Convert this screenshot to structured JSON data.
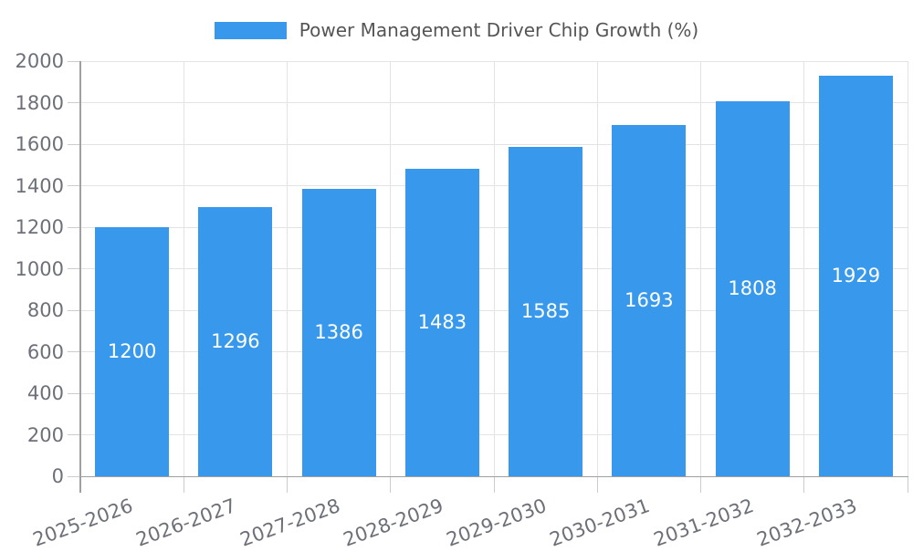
{
  "chart_data": {
    "type": "bar",
    "title": "Power Management Driver Chip Growth (%)",
    "legend": {
      "position": "top-center",
      "label": "Power Management Driver Chip Growth (%)"
    },
    "categories": [
      "2025-2026",
      "2026-2027",
      "2027-2028",
      "2028-2029",
      "2029-2030",
      "2030-2031",
      "2031-2032",
      "2032-2033"
    ],
    "values": [
      1200,
      1296,
      1386,
      1483,
      1585,
      1693,
      1808,
      1929
    ],
    "bar_labels": [
      "1200",
      "1296",
      "1386",
      "1483",
      "1585",
      "1693",
      "1808",
      "1929"
    ],
    "xlabel": "",
    "ylabel": "",
    "ylim": [
      0,
      2000
    ],
    "ytick_step": 200,
    "ytick_labels": [
      "0",
      "200",
      "400",
      "600",
      "800",
      "1000",
      "1200",
      "1400",
      "1600",
      "1800",
      "2000"
    ],
    "grid": "horizontal and vertical gridlines on, light gray, ticks at category boundaries",
    "colors": {
      "bar": "#3899ec",
      "bar_label_text": "#ffffff",
      "grid_line": "#e3e3e3",
      "axis_line": "#a0a0a0",
      "tick_line": "#cccccc",
      "axis_text": "#6e7079",
      "title_text": "#555555",
      "background": "#ffffff"
    }
  }
}
